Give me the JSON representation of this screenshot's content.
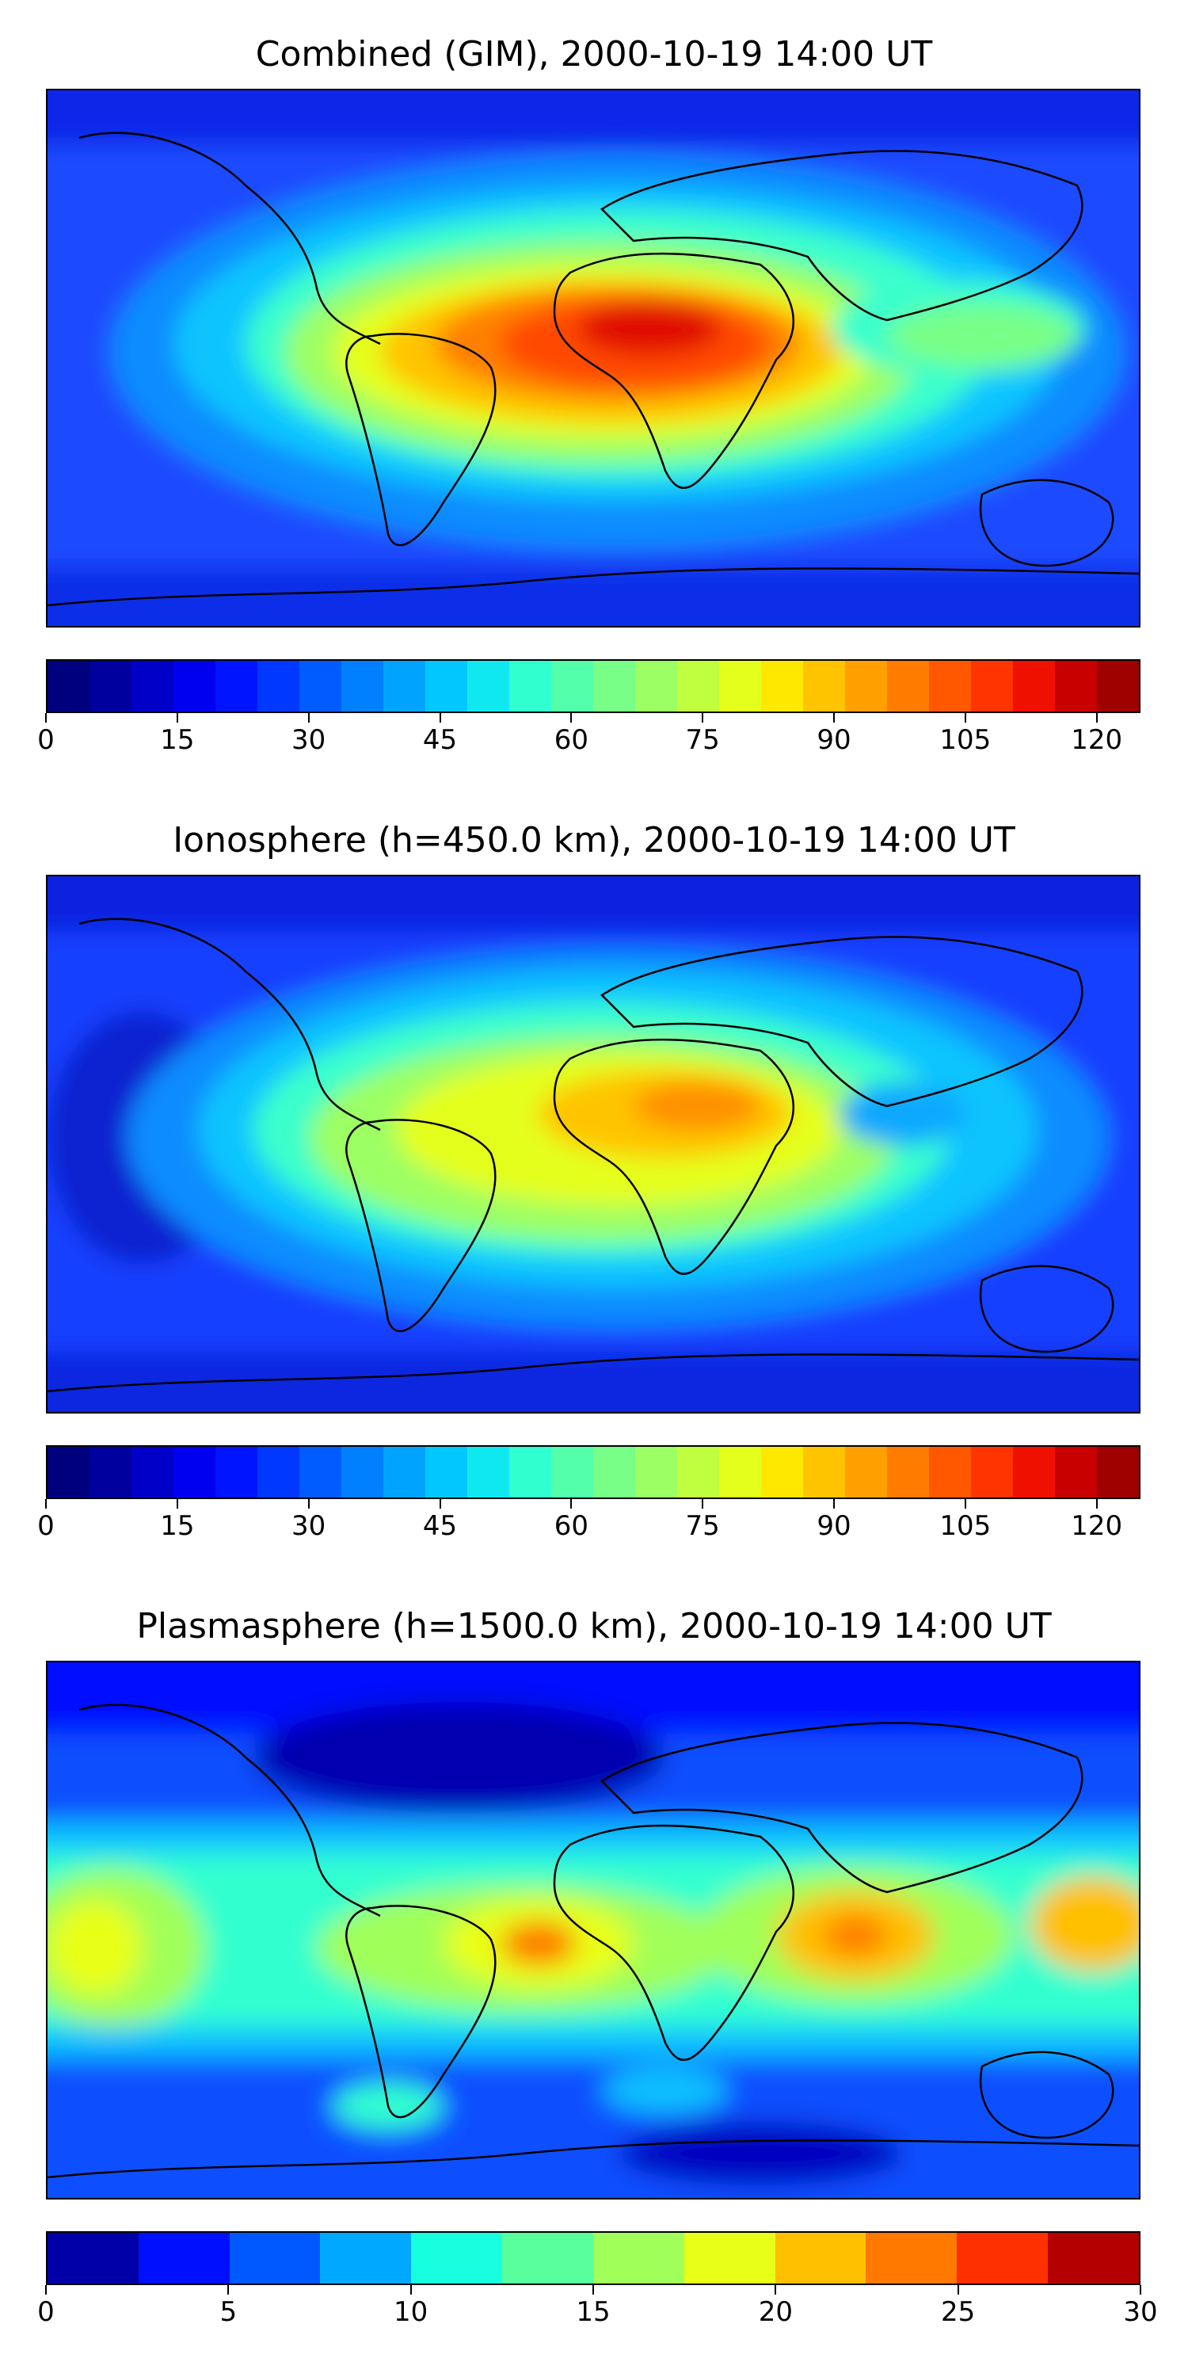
{
  "figure": {
    "panels": [
      {
        "id": "combined",
        "title": "Combined (GIM), 2000-10-19 14:00 UT",
        "colorbar": {
          "range": [
            0,
            125
          ],
          "ticks": [
            "0",
            "15",
            "30",
            "45",
            "60",
            "75",
            "90",
            "105",
            "120"
          ],
          "tick_values": [
            0,
            15,
            30,
            45,
            60,
            75,
            90,
            105,
            120
          ],
          "colors": [
            "#00007f",
            "#00009f",
            "#0000c8",
            "#0000f0",
            "#0014ff",
            "#0038ff",
            "#005cff",
            "#0080ff",
            "#00a4ff",
            "#00c8ff",
            "#10e8f0",
            "#30ffd0",
            "#54ffab",
            "#78ff87",
            "#9cff63",
            "#c0ff3f",
            "#e4ff1b",
            "#ffe800",
            "#ffc400",
            "#ffa000",
            "#ff7c00",
            "#ff5800",
            "#ff3400",
            "#f01000",
            "#c80000",
            "#9f0000"
          ]
        }
      },
      {
        "id": "ionosphere",
        "title": "Ionosphere  (h=450.0 km), 2000-10-19 14:00 UT",
        "colorbar": {
          "range": [
            0,
            125
          ],
          "ticks": [
            "0",
            "15",
            "30",
            "45",
            "60",
            "75",
            "90",
            "105",
            "120"
          ],
          "tick_values": [
            0,
            15,
            30,
            45,
            60,
            75,
            90,
            105,
            120
          ],
          "colors": [
            "#00007f",
            "#00009f",
            "#0000c8",
            "#0000f0",
            "#0014ff",
            "#0038ff",
            "#005cff",
            "#0080ff",
            "#00a4ff",
            "#00c8ff",
            "#10e8f0",
            "#30ffd0",
            "#54ffab",
            "#78ff87",
            "#9cff63",
            "#c0ff3f",
            "#e4ff1b",
            "#ffe800",
            "#ffc400",
            "#ffa000",
            "#ff7c00",
            "#ff5800",
            "#ff3400",
            "#f01000",
            "#c80000",
            "#9f0000"
          ]
        }
      },
      {
        "id": "plasmasphere",
        "title": "Plasmasphere (h=1500.0 km), 2000-10-19 14:00 UT",
        "colorbar": {
          "range": [
            0,
            30
          ],
          "ticks": [
            "0",
            "5",
            "10",
            "15",
            "20",
            "25",
            "30"
          ],
          "tick_values": [
            0,
            5,
            10,
            15,
            20,
            25,
            30
          ],
          "colors": [
            "#0000a8",
            "#0010ff",
            "#0058ff",
            "#00a8ff",
            "#18ffe0",
            "#58ff9c",
            "#a0ff58",
            "#e8ff18",
            "#ffc000",
            "#ff7800",
            "#ff3000",
            "#b40000"
          ]
        }
      }
    ]
  }
}
